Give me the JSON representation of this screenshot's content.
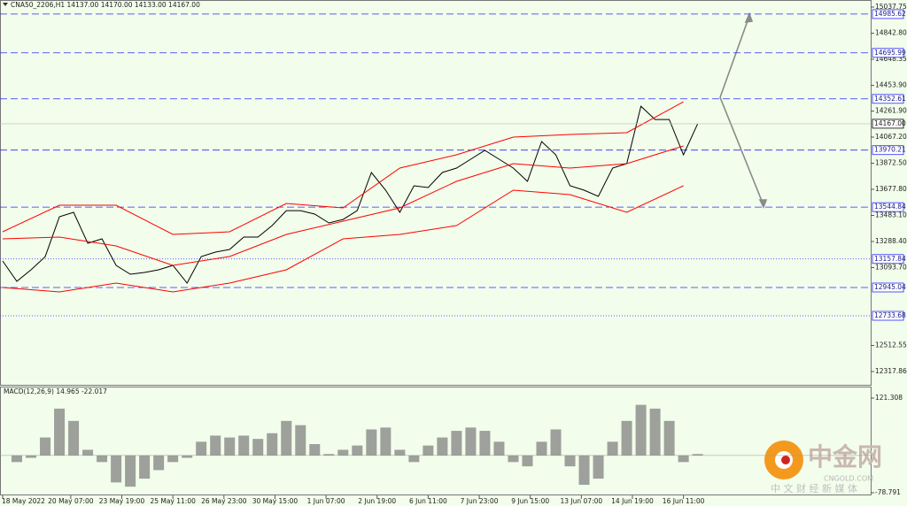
{
  "chart_data": [
    {
      "type": "line",
      "title": "CNA50_2206,H1  14137.00 14170.00 14133.00 14167.00",
      "xlim": [
        0,
        612
      ],
      "xticks": [
        {
          "value": 0,
          "label": "18 May 2022"
        },
        {
          "value": 48,
          "label": "20 May 07:00"
        },
        {
          "value": 84,
          "label": "23 May 19:00"
        },
        {
          "value": 120,
          "label": "25 May 11:00"
        },
        {
          "value": 156,
          "label": "26 May 23:00"
        },
        {
          "value": 192,
          "label": "30 May 15:00"
        },
        {
          "value": 228,
          "label": "1 Jun 07:00"
        },
        {
          "value": 264,
          "label": "2 Jun 19:00"
        },
        {
          "value": 300,
          "label": "6 Jun 11:00"
        },
        {
          "value": 336,
          "label": "7 Jun 23:00"
        },
        {
          "value": 372,
          "label": "9 Jun 15:00"
        },
        {
          "value": 408,
          "label": "13 Jun 07:00"
        },
        {
          "value": 444,
          "label": "14 Jun 19:00"
        },
        {
          "value": 480,
          "label": "16 Jun 11:00"
        }
      ],
      "ylim": [
        12218.8,
        15090.6
      ],
      "yticks": [
        15037.75,
        {
          "value": 14842.8,
          "label": "14842.80"
        },
        14648.35,
        {
          "value": 14453.9,
          "label": "14453.90"
        },
        {
          "value": 14261.9,
          "label": "14261.90"
        },
        {
          "value": 14067.2,
          "label": "14067.20"
        },
        {
          "value": 13872.5,
          "label": "13872.50"
        },
        {
          "value": 13677.8,
          "label": "13677.80"
        },
        {
          "value": 13483.1,
          "label": "13483.10"
        },
        {
          "value": 13288.4,
          "label": "13288.40"
        },
        {
          "value": 13093.7,
          "label": "13093.70"
        },
        12512.55,
        12317.86
      ],
      "series": [
        {
          "color": "#000000",
          "x": [
            0,
            10,
            20,
            30,
            40,
            50,
            60,
            70,
            80,
            90,
            100,
            110,
            120,
            130,
            140,
            150,
            160,
            170,
            180,
            190,
            200,
            210,
            220,
            230,
            240,
            250,
            260,
            270,
            280,
            290,
            300,
            310,
            320,
            330,
            340,
            350,
            360,
            370,
            380,
            390,
            400,
            410,
            420,
            430,
            440,
            450,
            460,
            470,
            480,
            490
          ],
          "values": [
            13143,
            12991,
            13077,
            13175,
            13473,
            13506,
            13275,
            13308,
            13110,
            13044,
            13057,
            13077,
            13110,
            12978,
            13176,
            13209,
            13229,
            13321,
            13321,
            13407,
            13519,
            13519,
            13493,
            13427,
            13453,
            13519,
            13803,
            13671,
            13506,
            13704,
            13691,
            13803,
            13836,
            13902,
            13968,
            13902,
            13836,
            13737,
            14034,
            13935,
            13704,
            13671,
            13625,
            13836,
            13869,
            14298,
            14199,
            14199,
            13935,
            14166
          ]
        },
        {
          "color": "#ff0000",
          "x": [
            0,
            40,
            80,
            120,
            160,
            200,
            240,
            280,
            320,
            360,
            400,
            440,
            480
          ],
          "values": [
            13361,
            13559,
            13559,
            13341,
            13361,
            13572,
            13539,
            13836,
            13935,
            14067,
            14087,
            14100,
            14331
          ]
        },
        {
          "color": "#ff0000",
          "x": [
            0,
            40,
            80,
            120,
            160,
            200,
            240,
            280,
            320,
            360,
            400,
            440,
            480
          ],
          "values": [
            13308,
            13321,
            13255,
            13110,
            13176,
            13341,
            13440,
            13539,
            13737,
            13869,
            13836,
            13869,
            14001
          ]
        },
        {
          "color": "#ff0000",
          "x": [
            0,
            40,
            80,
            120,
            160,
            200,
            240,
            280,
            320,
            360,
            400,
            440,
            480
          ],
          "values": [
            12945,
            12912,
            12978,
            12912,
            12978,
            13077,
            13308,
            13341,
            13407,
            13671,
            13638,
            13506,
            13704
          ]
        }
      ],
      "levels": [
        {
          "value": 14985.62,
          "style": "dashed"
        },
        {
          "value": 14695.99,
          "style": "dashed"
        },
        {
          "value": 14352.61,
          "style": "dashed"
        },
        {
          "value": 13970.21,
          "style": "dashed"
        },
        {
          "value": 13544.84,
          "style": "dashed"
        },
        {
          "value": 13157.84,
          "style": "dotted"
        },
        {
          "value": 12945.04,
          "style": "dashed"
        },
        {
          "value": 12733.68,
          "style": "dotted"
        }
      ],
      "current_price": {
        "value": 14167,
        "label": "14167.00"
      }
    },
    {
      "type": "bar",
      "title": "MACD(12,26,9) 14.965 -22.017",
      "color": "#808080",
      "xlim": [
        0,
        612
      ],
      "x": [
        0,
        10,
        20,
        30,
        40,
        50,
        60,
        70,
        80,
        90,
        100,
        110,
        120,
        130,
        140,
        150,
        160,
        170,
        180,
        190,
        200,
        210,
        220,
        230,
        240,
        250,
        260,
        270,
        280,
        290,
        300,
        310,
        320,
        330,
        340,
        350,
        360,
        370,
        380,
        390,
        400,
        410,
        420,
        430,
        440,
        450,
        460,
        470,
        480,
        490
      ],
      "values": [
        0,
        -14,
        -5,
        38,
        99,
        73,
        12,
        -14,
        -57,
        -66,
        -49,
        -31,
        -14,
        -5,
        29,
        42,
        38,
        42,
        35,
        47,
        73,
        64,
        24,
        3,
        12,
        21,
        55,
        59,
        12,
        -14,
        21,
        38,
        52,
        59,
        52,
        29,
        -14,
        -23,
        29,
        55,
        -23,
        -62,
        -49,
        29,
        73,
        107,
        99,
        73,
        -14,
        3
      ],
      "ylim": [
        -78.791,
        121.308
      ],
      "yticks": [
        121.308,
        -78.791
      ]
    }
  ],
  "watermark": {
    "logo": "中金网",
    "site": "CNGOLD.COM",
    "slogan": "中 文 财 经 新 媒 体"
  }
}
